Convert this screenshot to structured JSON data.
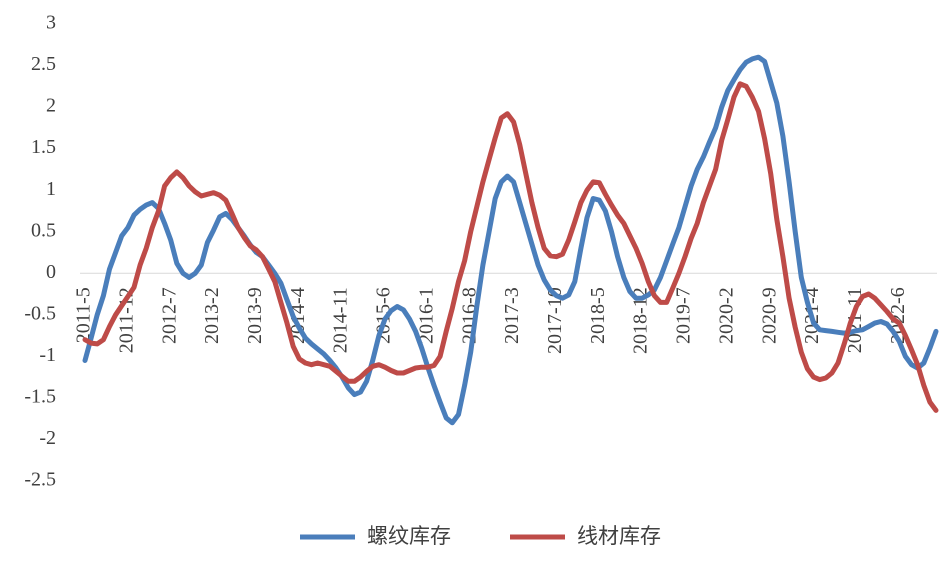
{
  "chart_data": {
    "type": "line",
    "categories": [
      "2011-5",
      null,
      null,
      null,
      null,
      null,
      null,
      "2011-12",
      null,
      null,
      null,
      null,
      null,
      null,
      "2012-7",
      null,
      null,
      null,
      null,
      null,
      null,
      "2013-2",
      null,
      null,
      null,
      null,
      null,
      null,
      "2013-9",
      null,
      null,
      null,
      null,
      null,
      null,
      "2014-4",
      null,
      null,
      null,
      null,
      null,
      null,
      "2014-11",
      null,
      null,
      null,
      null,
      null,
      null,
      "2015-6",
      null,
      null,
      null,
      null,
      null,
      null,
      "2016-1",
      null,
      null,
      null,
      null,
      null,
      null,
      "2016-8",
      null,
      null,
      null,
      null,
      null,
      null,
      "2017-3",
      null,
      null,
      null,
      null,
      null,
      null,
      "2017-10",
      null,
      null,
      null,
      null,
      null,
      null,
      "2018-5",
      null,
      null,
      null,
      null,
      null,
      null,
      "2018-12",
      null,
      null,
      null,
      null,
      null,
      null,
      "2019-7",
      null,
      null,
      null,
      null,
      null,
      null,
      "2020-2",
      null,
      null,
      null,
      null,
      null,
      null,
      "2020-9",
      null,
      null,
      null,
      null,
      null,
      null,
      "2021-4",
      null,
      null,
      null,
      null,
      null,
      null,
      "2021-11",
      null,
      null,
      null,
      null,
      null,
      null,
      "2022-6",
      null,
      null,
      null,
      null,
      null,
      null
    ],
    "series": [
      {
        "name": "螺纹库存",
        "color": "#4a7ebb",
        "values": [
          -1.05,
          -0.78,
          -0.5,
          -0.27,
          0.05,
          0.25,
          0.45,
          0.55,
          0.7,
          0.77,
          0.82,
          0.85,
          0.78,
          0.6,
          0.4,
          0.12,
          0.0,
          -0.05,
          0.0,
          0.1,
          0.37,
          0.52,
          0.68,
          0.72,
          0.65,
          0.55,
          0.45,
          0.34,
          0.25,
          0.2,
          0.1,
          0.0,
          -0.12,
          -0.32,
          -0.52,
          -0.66,
          -0.78,
          -0.85,
          -0.91,
          -0.97,
          -1.05,
          -1.14,
          -1.25,
          -1.38,
          -1.46,
          -1.43,
          -1.3,
          -1.05,
          -0.75,
          -0.55,
          -0.45,
          -0.4,
          -0.44,
          -0.55,
          -0.7,
          -0.9,
          -1.13,
          -1.35,
          -1.55,
          -1.74,
          -1.8,
          -1.7,
          -1.35,
          -0.95,
          -0.4,
          0.1,
          0.5,
          0.9,
          1.1,
          1.17,
          1.1,
          0.85,
          0.6,
          0.35,
          0.1,
          -0.08,
          -0.2,
          -0.27,
          -0.3,
          -0.26,
          -0.1,
          0.3,
          0.67,
          0.9,
          0.88,
          0.75,
          0.5,
          0.2,
          -0.05,
          -0.22,
          -0.3,
          -0.3,
          -0.26,
          -0.2,
          -0.05,
          0.15,
          0.35,
          0.55,
          0.8,
          1.05,
          1.25,
          1.4,
          1.58,
          1.75,
          2.0,
          2.2,
          2.33,
          2.45,
          2.54,
          2.58,
          2.6,
          2.55,
          2.3,
          2.05,
          1.65,
          1.1,
          0.5,
          -0.05,
          -0.35,
          -0.6,
          -0.68,
          -0.69,
          -0.7,
          -0.71,
          -0.72,
          -0.71,
          -0.69,
          -0.68,
          -0.64,
          -0.6,
          -0.58,
          -0.61,
          -0.7,
          -0.82,
          -1.0,
          -1.1,
          -1.14,
          -1.08,
          -0.9,
          -0.7
        ]
      },
      {
        "name": "线材库存",
        "color": "#be4b48",
        "values": [
          -0.8,
          -0.84,
          -0.85,
          -0.8,
          -0.64,
          -0.5,
          -0.39,
          -0.28,
          -0.17,
          0.1,
          0.3,
          0.55,
          0.75,
          1.05,
          1.15,
          1.22,
          1.15,
          1.05,
          0.98,
          0.93,
          0.95,
          0.97,
          0.94,
          0.88,
          0.72,
          0.55,
          0.43,
          0.33,
          0.28,
          0.2,
          0.05,
          -0.1,
          -0.35,
          -0.6,
          -0.88,
          -1.03,
          -1.08,
          -1.1,
          -1.08,
          -1.1,
          -1.12,
          -1.18,
          -1.24,
          -1.3,
          -1.3,
          -1.25,
          -1.18,
          -1.12,
          -1.1,
          -1.13,
          -1.17,
          -1.2,
          -1.2,
          -1.17,
          -1.14,
          -1.13,
          -1.13,
          -1.11,
          -1.0,
          -0.7,
          -0.42,
          -0.1,
          0.15,
          0.5,
          0.8,
          1.1,
          1.37,
          1.63,
          1.87,
          1.92,
          1.82,
          1.55,
          1.2,
          0.85,
          0.55,
          0.3,
          0.21,
          0.2,
          0.23,
          0.4,
          0.62,
          0.85,
          1.0,
          1.1,
          1.09,
          0.95,
          0.82,
          0.7,
          0.6,
          0.45,
          0.3,
          0.12,
          -0.1,
          -0.27,
          -0.35,
          -0.35,
          -0.18,
          0.0,
          0.2,
          0.42,
          0.6,
          0.85,
          1.05,
          1.25,
          1.6,
          1.85,
          2.12,
          2.28,
          2.25,
          2.12,
          1.95,
          1.62,
          1.2,
          0.65,
          0.2,
          -0.3,
          -0.65,
          -0.95,
          -1.15,
          -1.25,
          -1.28,
          -1.26,
          -1.2,
          -1.08,
          -0.85,
          -0.6,
          -0.4,
          -0.28,
          -0.25,
          -0.3,
          -0.38,
          -0.46,
          -0.55,
          -0.6,
          -0.75,
          -0.92,
          -1.1,
          -1.35,
          -1.55,
          -1.65
        ]
      }
    ],
    "ylim": [
      -2.5,
      3
    ],
    "yticks": [
      {
        "value": -2.5,
        "label": "-2.5"
      },
      -2,
      {
        "value": -1.5,
        "label": "-1.5"
      },
      -1,
      {
        "value": -0.5,
        "label": "-0.5"
      },
      0,
      0.5,
      1,
      1.5,
      2,
      2.5,
      3
    ],
    "legend": "bottom"
  }
}
